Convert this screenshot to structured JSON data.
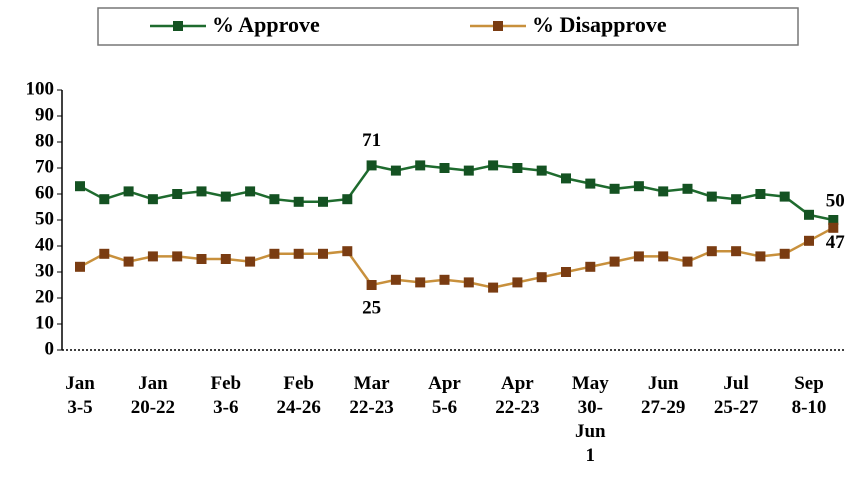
{
  "chart_data": {
    "type": "line",
    "categories": [
      "Jan\n3-5",
      null,
      null,
      "Jan\n20-22",
      null,
      null,
      "Feb\n3-6",
      null,
      null,
      "Feb\n24-26",
      null,
      null,
      "Mar\n22-23",
      null,
      null,
      "Apr\n5-6",
      null,
      null,
      "Apr\n22-23",
      null,
      null,
      "May\n30-\nJun\n1",
      null,
      null,
      "Jun\n27-29",
      null,
      null,
      "Jul\n25-27",
      null,
      null,
      "Sep\n8-10",
      null
    ],
    "series": [
      {
        "name": "% Approve",
        "color": "#1e6b2e",
        "marker_color": "#145222",
        "values": [
          63,
          58,
          61,
          58,
          60,
          61,
          59,
          61,
          58,
          57,
          57,
          58,
          71,
          69,
          71,
          70,
          69,
          71,
          70,
          69,
          66,
          64,
          62,
          63,
          61,
          62,
          59,
          58,
          60,
          59,
          52,
          50
        ],
        "value_labels": [
          null,
          null,
          null,
          null,
          null,
          null,
          null,
          null,
          null,
          null,
          null,
          null,
          "71",
          null,
          null,
          null,
          null,
          null,
          null,
          null,
          null,
          null,
          null,
          null,
          null,
          null,
          null,
          null,
          null,
          null,
          null,
          "50"
        ]
      },
      {
        "name": "% Disapprove",
        "color": "#c8903c",
        "marker_color": "#7a3c12",
        "values": [
          32,
          37,
          34,
          36,
          36,
          35,
          35,
          34,
          37,
          37,
          37,
          38,
          25,
          27,
          26,
          27,
          26,
          24,
          26,
          28,
          30,
          32,
          34,
          36,
          36,
          34,
          38,
          38,
          36,
          37,
          42,
          47
        ],
        "value_labels": [
          null,
          null,
          null,
          null,
          null,
          null,
          null,
          null,
          null,
          null,
          null,
          null,
          "25",
          null,
          null,
          null,
          null,
          null,
          null,
          null,
          null,
          null,
          null,
          null,
          null,
          null,
          null,
          null,
          null,
          null,
          null,
          "47"
        ]
      }
    ],
    "ylim": [
      0,
      100
    ],
    "yticks": [
      0,
      10,
      20,
      30,
      40,
      50,
      60,
      70,
      80,
      90,
      100
    ],
    "grid": false,
    "legend": "top"
  }
}
